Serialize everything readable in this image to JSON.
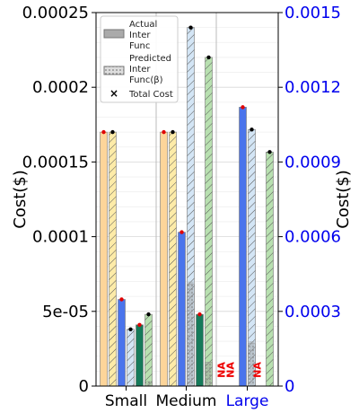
{
  "chart_data": {
    "type": "bar",
    "categories": [
      "Small",
      "Medium",
      "Large"
    ],
    "category_colors": [
      "#000000",
      "#000000",
      "#0000ee"
    ],
    "ylabel_left": "Cost($)",
    "ylabel_right": "Cost($)",
    "ylim_left": [
      0,
      0.00025
    ],
    "ylim_right": [
      0,
      0.0015
    ],
    "yticks_left": [
      "0",
      "5e-05",
      "0.0001",
      "0.00015",
      "0.0002",
      "0.00025"
    ],
    "yticks_left_values": [
      0,
      5e-05,
      0.0001,
      0.00015,
      0.0002,
      0.00025
    ],
    "yticks_right": [
      "0",
      "0.0003",
      "0.0006",
      "0.0009",
      "0.0012",
      "0.0015"
    ],
    "yticks_right_values": [
      0,
      0.0003,
      0.0006,
      0.0009,
      0.0012,
      0.0015
    ],
    "grid": true,
    "legend": {
      "position": "top-left",
      "entries": [
        {
          "label": "Actual Inter Func",
          "style": "solid-gray"
        },
        {
          "label": "Predicted Inter Func(β)",
          "style": "dotted-gray"
        },
        {
          "label": "Total Cost",
          "style": "x-marker"
        }
      ]
    },
    "na_label": "NA",
    "bars": [
      {
        "category": "Small",
        "color": "#fdd59a",
        "hatch": "none",
        "total": 0.00017,
        "actual_inter": 0.0,
        "predicted_inter": 0.0,
        "marker": "red"
      },
      {
        "category": "Small",
        "color": "#fdeba8",
        "hatch": "diag",
        "total": 0.00017,
        "actual_inter": 0.0,
        "predicted_inter": 0.0,
        "marker": "black"
      },
      {
        "category": "Small",
        "color": "#4a74ec",
        "hatch": "none",
        "total": 5.8e-05,
        "actual_inter": 0.0,
        "predicted_inter": 0.0,
        "marker": "red"
      },
      {
        "category": "Small",
        "color": "#d3e5f5",
        "hatch": "diag",
        "total": 3.8e-05,
        "actual_inter": 0.0,
        "predicted_inter": 0.0,
        "marker": "black"
      },
      {
        "category": "Small",
        "color": "#167a5a",
        "hatch": "none",
        "total": 4.1e-05,
        "actual_inter": 0.0,
        "predicted_inter": 0.0,
        "marker": "red"
      },
      {
        "category": "Small",
        "color": "#b8e0b0",
        "hatch": "diag",
        "total": 4.8e-05,
        "actual_inter": 2e-06,
        "predicted_inter": 3e-06,
        "marker": "black"
      },
      {
        "category": "Medium",
        "color": "#fdd59a",
        "hatch": "none",
        "total": 0.00017,
        "actual_inter": 0.0,
        "predicted_inter": 0.0,
        "marker": "red"
      },
      {
        "category": "Medium",
        "color": "#fdeba8",
        "hatch": "diag",
        "total": 0.00017,
        "actual_inter": 0.0,
        "predicted_inter": 0.0,
        "marker": "black"
      },
      {
        "category": "Medium",
        "color": "#4a74ec",
        "hatch": "none",
        "total": 0.000103,
        "actual_inter": 0.0,
        "predicted_inter": 0.0,
        "marker": "red"
      },
      {
        "category": "Medium",
        "color": "#d3e5f5",
        "hatch": "diag",
        "total": 0.00024,
        "actual_inter": 7e-05,
        "predicted_inter": 6.8e-05,
        "marker": "black"
      },
      {
        "category": "Medium",
        "color": "#167a5a",
        "hatch": "none",
        "total": 4.8e-05,
        "actual_inter": 0.0,
        "predicted_inter": 0.0,
        "marker": "red"
      },
      {
        "category": "Medium",
        "color": "#b8e0b0",
        "hatch": "diag",
        "total": 0.00022,
        "actual_inter": 1.6e-05,
        "predicted_inter": 1.6e-05,
        "marker": "black"
      },
      {
        "category": "Large",
        "color": "#fdd59a",
        "hatch": "none",
        "total": null,
        "na": true
      },
      {
        "category": "Large",
        "color": "#fdeba8",
        "hatch": "diag",
        "total": null,
        "na": true
      },
      {
        "category": "Large",
        "color": "#4a74ec",
        "hatch": "none",
        "total": 0.00112,
        "actual_inter": 0.0,
        "predicted_inter": 0.0,
        "marker": "red",
        "axis": "right"
      },
      {
        "category": "Large",
        "color": "#d3e5f5",
        "hatch": "diag",
        "total": 0.00103,
        "actual_inter": 0.00018,
        "predicted_inter": 0.00017,
        "marker": "black",
        "axis": "right"
      },
      {
        "category": "Large",
        "color": "#167a5a",
        "hatch": "none",
        "total": null,
        "na": true
      },
      {
        "category": "Large",
        "color": "#b8e0b0",
        "hatch": "diag",
        "total": 0.00094,
        "actual_inter": 0.0,
        "predicted_inter": 0.0,
        "marker": "black",
        "axis": "right"
      }
    ]
  }
}
